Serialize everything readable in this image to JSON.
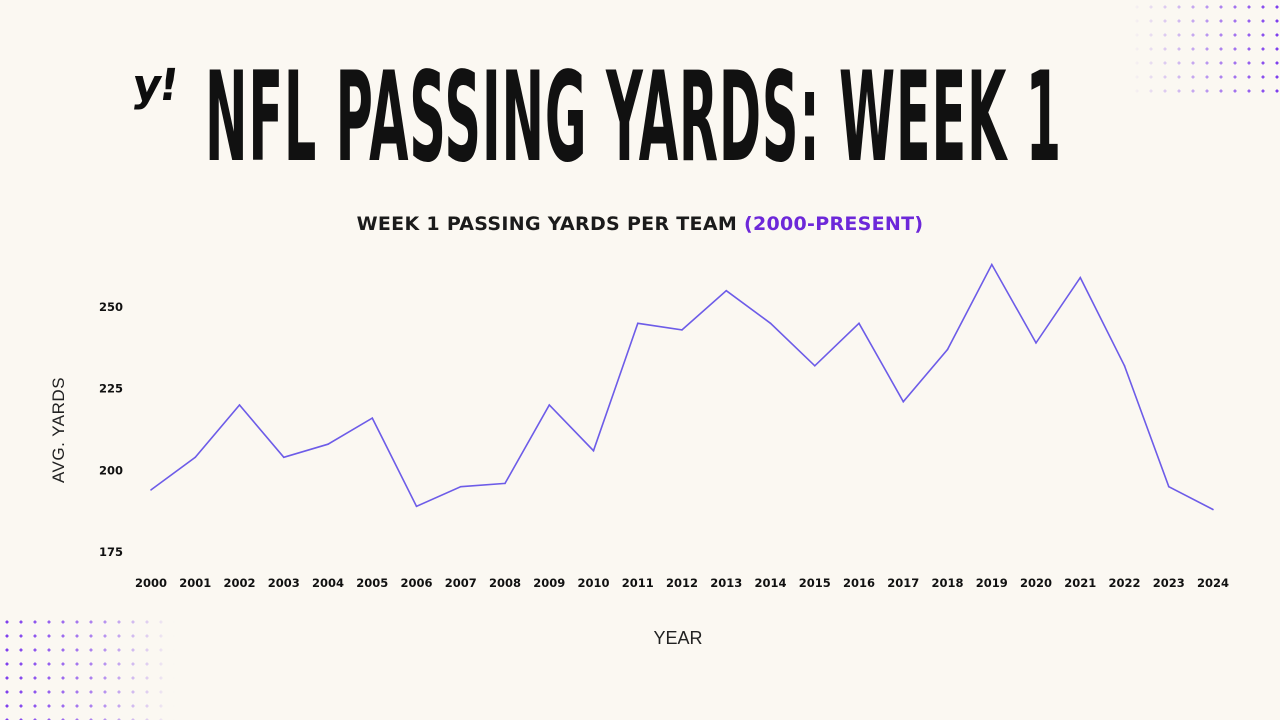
{
  "header": {
    "logo_text": "y!",
    "title": "NFL PASSING YARDS: WEEK 1",
    "subtitle_main": "WEEK 1 PASSING YARDS PER TEAM ",
    "subtitle_accent": "(2000-PRESENT)"
  },
  "colors": {
    "background": "#fbf8f2",
    "line": "#6d5ce8",
    "accent": "#6d28d9",
    "text": "#111111"
  },
  "chart_data": {
    "type": "line",
    "xlabel": "YEAR",
    "ylabel": "AVG. YARDS",
    "ylim": [
      175,
      263
    ],
    "yticks": [
      175,
      200,
      225,
      250
    ],
    "grid": false,
    "x": [
      "2000",
      "2001",
      "2002",
      "2003",
      "2004",
      "2005",
      "2006",
      "2007",
      "2008",
      "2009",
      "2010",
      "2011",
      "2012",
      "2013",
      "2014",
      "2015",
      "2016",
      "2017",
      "2018",
      "2019",
      "2020",
      "2021",
      "2022",
      "2023",
      "2024"
    ],
    "series": [
      {
        "values": [
          194,
          204,
          220,
          204,
          208,
          216,
          189,
          195,
          196,
          220,
          206,
          245,
          243,
          255,
          245,
          232,
          245,
          221,
          237,
          263,
          239,
          259,
          232,
          195,
          188
        ]
      }
    ]
  }
}
